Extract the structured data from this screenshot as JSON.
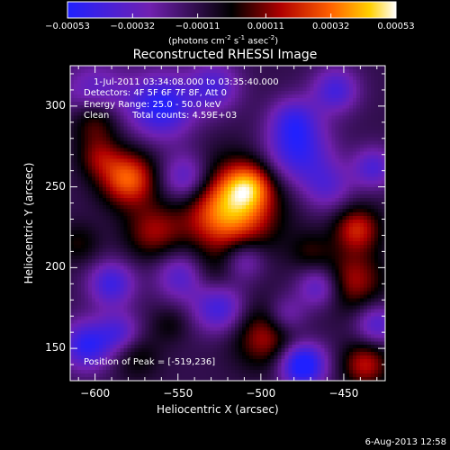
{
  "colorbar": {
    "ticks": [
      "-0.00053",
      "-0.00032",
      "-0.00011",
      "0.00011",
      "0.00032",
      "0.00053"
    ],
    "units_label": "(photons cm",
    "units_exp1": "-2",
    "units_mid1": " s",
    "units_exp2": "-1",
    "units_mid2": " asec",
    "units_exp3": "-2",
    "units_end": ")"
  },
  "title": "Reconstructed RHESSI Image",
  "annotations": {
    "time_range": "1-Jul-2011 03:34:08.000 to 03:35:40.000",
    "detectors": "Detectors: 4F 5F 6F 7F 8F, Att 0",
    "energy": "Energy Range: 25.0 - 50.0 keV",
    "clean_label": "Clean",
    "total_counts": "Total counts: 4.59E+03",
    "peak": "Position of Peak = [-519,236]"
  },
  "footer": {
    "date": "6-Aug-2013 12:58"
  },
  "chart_data": {
    "type": "heatmap",
    "title": "Reconstructed RHESSI Image",
    "xlabel": "Heliocentric X (arcsec)",
    "ylabel": "Heliocentric Y (arcsec)",
    "xlim": [
      -615,
      -425
    ],
    "ylim": [
      130,
      325
    ],
    "x_ticks": [
      -600,
      -550,
      -500,
      -450
    ],
    "y_ticks": [
      150,
      200,
      250,
      300
    ],
    "colorbar_range": [
      -0.00053,
      0.00053
    ],
    "peak": [
      -519,
      236
    ],
    "blobs": [
      {
        "x": -519,
        "y": 236,
        "r": 19,
        "v": 1.0
      },
      {
        "x": -507,
        "y": 251,
        "r": 10,
        "v": 0.55
      },
      {
        "x": -580,
        "y": 255,
        "r": 12,
        "v": 0.8
      },
      {
        "x": -600,
        "y": 292,
        "r": 11,
        "v": 0.6
      },
      {
        "x": -598,
        "y": 268,
        "r": 9,
        "v": 0.35
      },
      {
        "x": -565,
        "y": 222,
        "r": 12,
        "v": 0.45
      },
      {
        "x": -496,
        "y": 158,
        "r": 14,
        "v": 0.55
      },
      {
        "x": -442,
        "y": 224,
        "r": 10,
        "v": 0.6
      },
      {
        "x": -444,
        "y": 192,
        "r": 13,
        "v": 0.5
      },
      {
        "x": -437,
        "y": 140,
        "r": 10,
        "v": 0.55
      },
      {
        "x": -470,
        "y": 210,
        "r": 9,
        "v": 0.25
      },
      {
        "x": -575,
        "y": 145,
        "r": 10,
        "v": 0.25
      },
      {
        "x": -555,
        "y": 165,
        "r": 8,
        "v": 0.2
      },
      {
        "x": -530,
        "y": 195,
        "r": 10,
        "v": 0.2
      },
      {
        "x": -610,
        "y": 215,
        "r": 9,
        "v": 0.25
      },
      {
        "x": -600,
        "y": 305,
        "r": 14,
        "v": -0.55
      },
      {
        "x": -545,
        "y": 255,
        "r": 11,
        "v": -0.6
      },
      {
        "x": -560,
        "y": 300,
        "r": 14,
        "v": -0.75
      },
      {
        "x": -528,
        "y": 312,
        "r": 11,
        "v": -0.5
      },
      {
        "x": -480,
        "y": 292,
        "r": 10,
        "v": -0.45
      },
      {
        "x": -478,
        "y": 272,
        "r": 14,
        "v": -0.65
      },
      {
        "x": -455,
        "y": 310,
        "r": 10,
        "v": -0.55
      },
      {
        "x": -432,
        "y": 262,
        "r": 9,
        "v": -0.5
      },
      {
        "x": -590,
        "y": 190,
        "r": 10,
        "v": -0.6
      },
      {
        "x": -548,
        "y": 195,
        "r": 11,
        "v": -0.5
      },
      {
        "x": -525,
        "y": 175,
        "r": 11,
        "v": -0.6
      },
      {
        "x": -510,
        "y": 205,
        "r": 9,
        "v": -0.45
      },
      {
        "x": -485,
        "y": 170,
        "r": 9,
        "v": -0.45
      },
      {
        "x": -475,
        "y": 140,
        "r": 10,
        "v": -0.95
      },
      {
        "x": -605,
        "y": 152,
        "r": 11,
        "v": -0.7
      },
      {
        "x": -585,
        "y": 160,
        "r": 9,
        "v": -0.45
      },
      {
        "x": -460,
        "y": 250,
        "r": 11,
        "v": -0.4
      },
      {
        "x": -430,
        "y": 165,
        "r": 9,
        "v": -0.5
      },
      {
        "x": -465,
        "y": 188,
        "r": 9,
        "v": -0.5
      }
    ]
  }
}
